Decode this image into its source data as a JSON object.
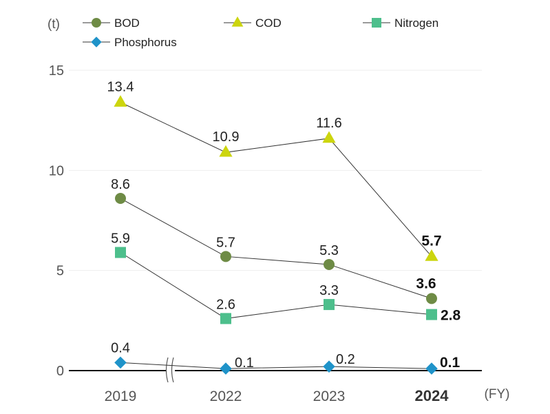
{
  "chart_data": {
    "type": "line",
    "y_unit": "(t)",
    "x_unit": "(FY)",
    "categories": [
      "2019",
      "2022",
      "2023",
      "2024"
    ],
    "highlight_category": "2024",
    "ylim": [
      0,
      15
    ],
    "yticks": [
      0,
      5,
      10,
      15
    ],
    "grid": true,
    "legend_position": "top",
    "axis_break_between": [
      "2019",
      "2022"
    ],
    "series": [
      {
        "name": "BOD",
        "marker": "circle",
        "color": "#6e8b45",
        "values": [
          8.6,
          5.7,
          5.3,
          3.6
        ],
        "labels": [
          "8.6",
          "5.7",
          "5.3",
          "3.6"
        ]
      },
      {
        "name": "COD",
        "marker": "triangle",
        "color": "#ccd50e",
        "values": [
          13.4,
          10.9,
          11.6,
          5.7
        ],
        "labels": [
          "13.4",
          "10.9",
          "11.6",
          "5.7"
        ]
      },
      {
        "name": "Nitrogen",
        "marker": "square",
        "color": "#4dbf8c",
        "values": [
          5.9,
          2.6,
          3.3,
          2.8
        ],
        "labels": [
          "5.9",
          "2.6",
          "3.3",
          "2.8"
        ]
      },
      {
        "name": "Phosphorus",
        "marker": "diamond",
        "color": "#1f93c9",
        "values": [
          0.4,
          0.1,
          0.2,
          0.1
        ],
        "labels": [
          "0.4",
          "0.1",
          "0.2",
          "0.1"
        ]
      }
    ]
  }
}
